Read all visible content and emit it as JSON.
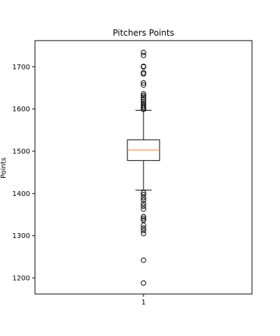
{
  "chart_data": {
    "type": "boxplot",
    "title": "Pitchers Points",
    "xlabel": "",
    "ylabel": "Points",
    "categories": [
      "1"
    ],
    "ylim": [
      1162,
      1762
    ],
    "yticks": [
      1200,
      1300,
      1400,
      1500,
      1600,
      1700
    ],
    "grid": false,
    "boxes": [
      {
        "category": "1",
        "whisker_low": 1408,
        "q1": 1478,
        "median": 1503,
        "q3": 1527,
        "whisker_high": 1597,
        "outliers": [
          1188,
          1242,
          1305,
          1312,
          1318,
          1325,
          1337,
          1341,
          1345,
          1363,
          1370,
          1376,
          1384,
          1390,
          1397,
          1402,
          1599,
          1603,
          1606,
          1610,
          1614,
          1618,
          1623,
          1628,
          1632,
          1636,
          1657,
          1662,
          1683,
          1686,
          1700,
          1701,
          1727,
          1734
        ]
      }
    ],
    "colors": {
      "box": "#000000",
      "median": "#ff7f0e"
    }
  }
}
